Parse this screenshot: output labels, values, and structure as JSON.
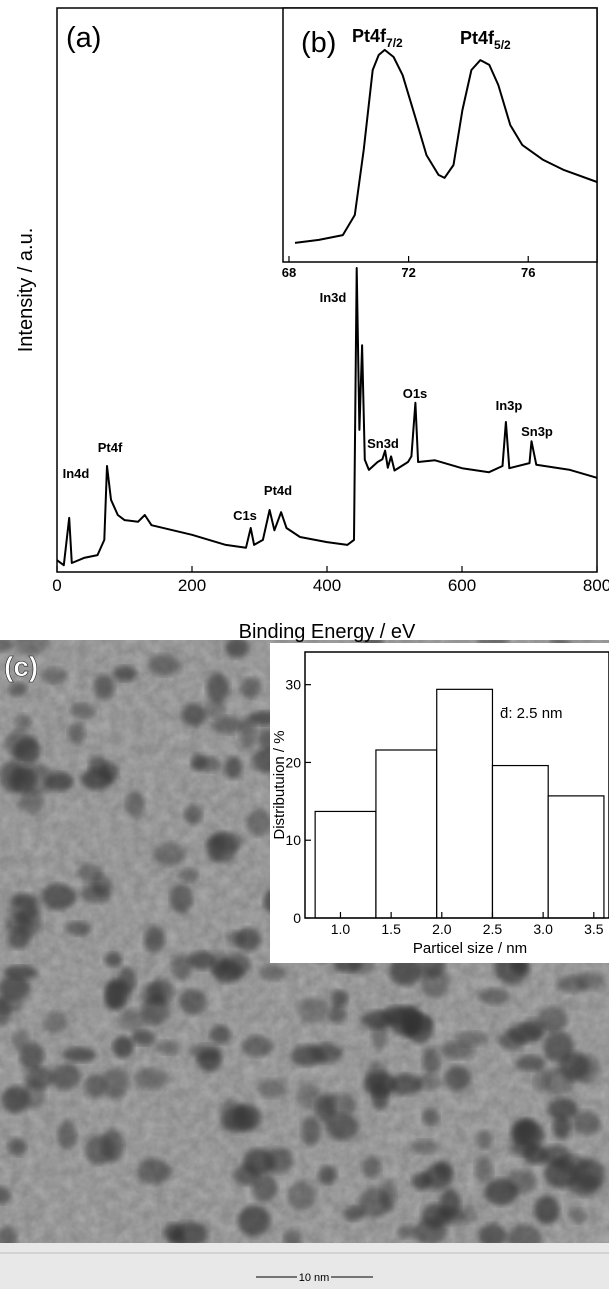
{
  "chart_data": [
    {
      "type": "line",
      "panel_label": "(a)",
      "xlabel": "Binding Energy / eV",
      "ylabel": "Intensity / a.u.",
      "xlim": [
        0,
        800
      ],
      "xticks": [
        0,
        200,
        400,
        600,
        800
      ],
      "ylim": [
        0,
        100
      ],
      "x": [
        0,
        10,
        18,
        22,
        40,
        60,
        70,
        74,
        80,
        90,
        100,
        120,
        130,
        140,
        200,
        250,
        280,
        287,
        292,
        305,
        315,
        322,
        332,
        340,
        360,
        400,
        430,
        440,
        444,
        448,
        452,
        456,
        462,
        475,
        482,
        486,
        490,
        495,
        500,
        520,
        525,
        531,
        535,
        560,
        600,
        640,
        660,
        665,
        670,
        700,
        703,
        710,
        760,
        800
      ],
      "values": [
        2.1,
        1.2,
        9.6,
        1.6,
        2.5,
        3.0,
        5.7,
        18.8,
        12.8,
        10.1,
        9.2,
        8.9,
        10.1,
        8.3,
        6.6,
        4.8,
        4.3,
        7.8,
        4.8,
        5.7,
        11.0,
        7.4,
        10.6,
        7.8,
        6.2,
        5.3,
        4.8,
        5.7,
        53.9,
        25.2,
        40.2,
        19.9,
        18.1,
        19.5,
        20.0,
        21.5,
        18.5,
        20.5,
        18.0,
        19.5,
        20.5,
        30.0,
        19.5,
        19.8,
        18.4,
        17.7,
        18.8,
        26.6,
        18.4,
        19.3,
        23.2,
        19.0,
        18.1,
        16.7
      ],
      "color": "#000000",
      "peak_labels": [
        "In4d",
        "Pt4f",
        "C1s",
        "Pt4d",
        "In3d",
        "Sn3d",
        "O1s",
        "In3p",
        "Sn3p"
      ]
    },
    {
      "type": "line",
      "panel_label": "(b)",
      "xlim": [
        67.8,
        78.3
      ],
      "xticks": [
        68,
        72,
        76
      ],
      "ylim": [
        0,
        100
      ],
      "x": [
        68.2,
        69,
        69.8,
        70.2,
        70.5,
        70.8,
        71.0,
        71.2,
        71.5,
        71.8,
        72.2,
        72.6,
        73.0,
        73.2,
        73.5,
        73.8,
        74.1,
        74.4,
        74.7,
        75.0,
        75.4,
        75.8,
        76.5,
        77.2,
        78.3
      ],
      "values": [
        7.5,
        8.7,
        10.6,
        18.5,
        44.1,
        75.6,
        81.5,
        83.5,
        80.7,
        73.6,
        57.9,
        42.1,
        34.3,
        33.1,
        38.2,
        59.8,
        75.6,
        79.5,
        77.6,
        69.7,
        53.9,
        46.1,
        40.2,
        36.2,
        31.5
      ],
      "color": "#000000",
      "peak_labels": [
        {
          "text": "Pt4f",
          "sub": "7/2"
        },
        {
          "text": "Pt4f",
          "sub": "5/2"
        }
      ]
    },
    {
      "type": "histogram",
      "panel_label": "(c)",
      "xlabel": "Particel size / nm",
      "ylabel": "Distributuion / %",
      "annotation": "d̄: 2.5 nm",
      "bins": [
        0.75,
        1.35,
        1.95,
        2.5,
        3.05,
        3.6
      ],
      "values": [
        13.7,
        21.6,
        29.4,
        19.6,
        15.7
      ],
      "color": "#ffffff",
      "xlim": [
        0.65,
        3.65
      ],
      "xticks": [
        {
          "value": 1,
          "label": "1.0"
        },
        {
          "value": 1.5,
          "label": "1.5"
        },
        {
          "value": 2,
          "label": "2.0"
        },
        {
          "value": 2.5,
          "label": "2.5"
        },
        {
          "value": 3,
          "label": "3.0"
        },
        {
          "value": 3.5,
          "label": "3.5"
        }
      ],
      "ylim": [
        0,
        34.2
      ],
      "yticks": [
        0,
        10,
        20,
        30
      ]
    }
  ],
  "scale_bar": "10 nm"
}
